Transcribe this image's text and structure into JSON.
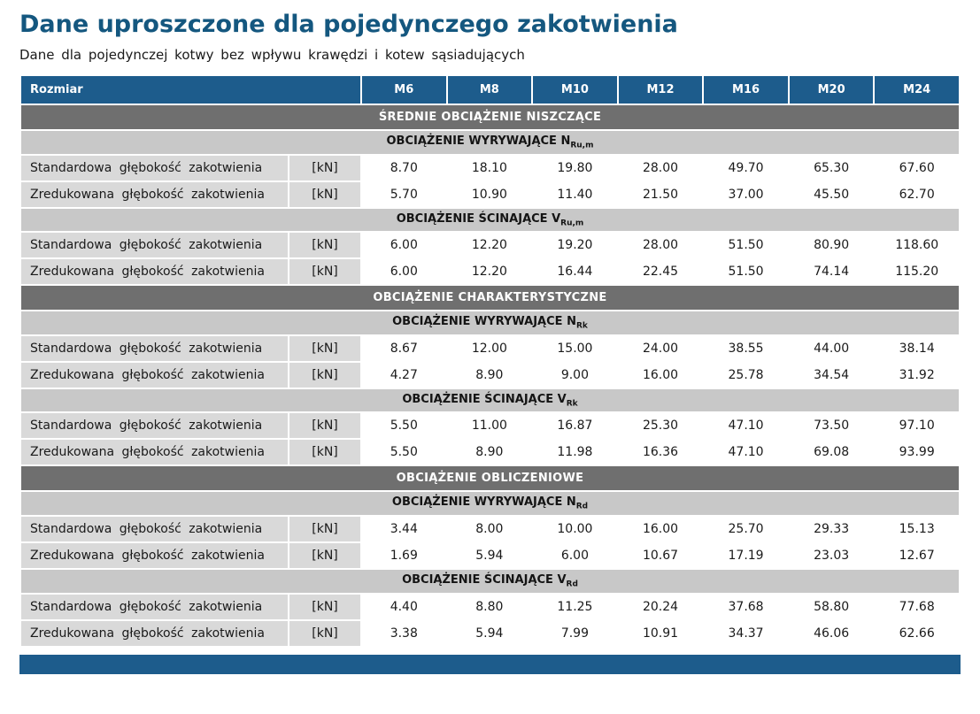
{
  "page": {
    "title": "Dane uproszczone dla pojedynczego zakotwienia",
    "subtitle": "Dane dla pojedynczej kotwy bez wpływu krawędzi i kotew sąsiadujących"
  },
  "colors": {
    "title_blue": "#14577f",
    "header_blue": "#1d5c8c",
    "section_gray": "#6f6f6f",
    "subsection_gray": "#c8c8c8",
    "row_gray": "#d9d9d9"
  },
  "table": {
    "header": {
      "label": "Rozmiar",
      "sizes": [
        "M6",
        "M8",
        "M10",
        "M12",
        "M16",
        "M20",
        "M24"
      ]
    },
    "sections": [
      {
        "title": "ŚREDNIE OBCIĄŻENIE NISZCZĄCE",
        "subsections": [
          {
            "title": "OBCIĄŻENIE WYRYWAJĄCE N",
            "subscript": "Ru,m",
            "rows": [
              {
                "label": "Standardowa głębokość zakotwienia",
                "unit": "[kN]",
                "values": [
                  "8.70",
                  "18.10",
                  "19.80",
                  "28.00",
                  "49.70",
                  "65.30",
                  "67.60"
                ]
              },
              {
                "label": "Zredukowana głębokość zakotwienia",
                "unit": "[kN]",
                "values": [
                  "5.70",
                  "10.90",
                  "11.40",
                  "21.50",
                  "37.00",
                  "45.50",
                  "62.70"
                ]
              }
            ]
          },
          {
            "title": "OBCIĄŻENIE ŚCINAJĄCE V",
            "subscript": "Ru,m",
            "rows": [
              {
                "label": "Standardowa głębokość zakotwienia",
                "unit": "[kN]",
                "values": [
                  "6.00",
                  "12.20",
                  "19.20",
                  "28.00",
                  "51.50",
                  "80.90",
                  "118.60"
                ]
              },
              {
                "label": "Zredukowana głębokość zakotwienia",
                "unit": "[kN]",
                "values": [
                  "6.00",
                  "12.20",
                  "16.44",
                  "22.45",
                  "51.50",
                  "74.14",
                  "115.20"
                ]
              }
            ]
          }
        ]
      },
      {
        "title": "OBCIĄŻENIE CHARAKTERYSTYCZNE",
        "subsections": [
          {
            "title": "OBCIĄŻENIE WYRYWAJĄCE N",
            "subscript": "Rk",
            "rows": [
              {
                "label": "Standardowa głębokość zakotwienia",
                "unit": "[kN]",
                "values": [
                  "8.67",
                  "12.00",
                  "15.00",
                  "24.00",
                  "38.55",
                  "44.00",
                  "38.14"
                ]
              },
              {
                "label": "Zredukowana głębokość zakotwienia",
                "unit": "[kN]",
                "values": [
                  "4.27",
                  "8.90",
                  "9.00",
                  "16.00",
                  "25.78",
                  "34.54",
                  "31.92"
                ]
              }
            ]
          },
          {
            "title": "OBCIĄŻENIE ŚCINAJĄCE V",
            "subscript": "Rk",
            "rows": [
              {
                "label": "Standardowa głębokość zakotwienia",
                "unit": "[kN]",
                "values": [
                  "5.50",
                  "11.00",
                  "16.87",
                  "25.30",
                  "47.10",
                  "73.50",
                  "97.10"
                ]
              },
              {
                "label": "Zredukowana głębokość zakotwienia",
                "unit": "[kN]",
                "values": [
                  "5.50",
                  "8.90",
                  "11.98",
                  "16.36",
                  "47.10",
                  "69.08",
                  "93.99"
                ]
              }
            ]
          }
        ]
      },
      {
        "title": "OBCIĄŻENIE OBLICZENIOWE",
        "subsections": [
          {
            "title": "OBCIĄŻENIE WYRYWAJĄCE N",
            "subscript": "Rd",
            "rows": [
              {
                "label": "Standardowa głębokość zakotwienia",
                "unit": "[kN]",
                "values": [
                  "3.44",
                  "8.00",
                  "10.00",
                  "16.00",
                  "25.70",
                  "29.33",
                  "15.13"
                ]
              },
              {
                "label": "Zredukowana głębokość zakotwienia",
                "unit": "[kN]",
                "values": [
                  "1.69",
                  "5.94",
                  "6.00",
                  "10.67",
                  "17.19",
                  "23.03",
                  "12.67"
                ]
              }
            ]
          },
          {
            "title": "OBCIĄŻENIE ŚCINAJĄCE V",
            "subscript": "Rd",
            "rows": [
              {
                "label": "Standardowa głębokość zakotwienia",
                "unit": "[kN]",
                "values": [
                  "4.40",
                  "8.80",
                  "11.25",
                  "20.24",
                  "37.68",
                  "58.80",
                  "77.68"
                ]
              },
              {
                "label": "Zredukowana głębokość zakotwienia",
                "unit": "[kN]",
                "values": [
                  "3.38",
                  "5.94",
                  "7.99",
                  "10.91",
                  "34.37",
                  "46.06",
                  "62.66"
                ]
              }
            ]
          }
        ]
      }
    ]
  }
}
